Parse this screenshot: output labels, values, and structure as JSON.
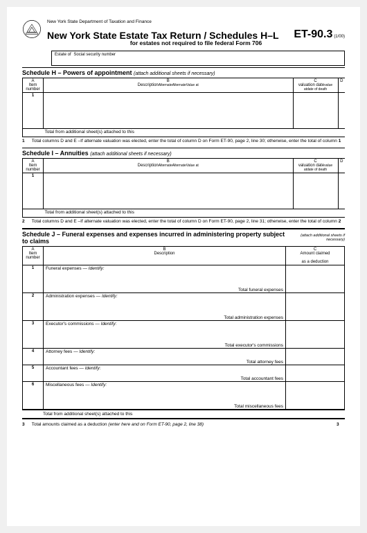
{
  "dept": "New York State Department of Taxation and Finance",
  "form_code": "ET-90.3",
  "date_code": "(1/00)",
  "title": "New York State Estate Tax Return / Schedules H–L",
  "subtitle": "for estates not required to file federal Form 706",
  "estate_label": "Estate of",
  "ssn_label": "Social security number",
  "sched_h": {
    "title": "Schedule H – Powers of appointment",
    "note": "(attach additional sheets if necessary)",
    "cols": {
      "a": "A\nItem\nnumber",
      "b": "B\nDescription",
      "balt1": "Alternate",
      "balt2": "Alternate",
      "bval": "Value at",
      "c": "C\nvaluation date",
      "cval": "value at",
      "cdate": "date of death",
      "d": "D"
    },
    "row1": "1",
    "total": "Total from additional sheet(s) attached to this",
    "instr_num": "1",
    "instr": "Total columns D and E –If alternate valuation was elected, enter the total of column D on\nForm ET-90, page 2, line 30; otherwise, enter the total of column",
    "instr_end": "1"
  },
  "sched_i": {
    "title": "Schedule I – Annuities",
    "note": "(attach additional sheets if necessary)",
    "row1": "1",
    "total": "Total from additional sheet(s) attached to this",
    "instr_num": "2",
    "instr": "Total columns D and E –If alternate valuation was elected, enter the total of column D on\nForm ET-90, page 2, line 31; otherwise, enter the total of column",
    "instr_end": "2"
  },
  "sched_j": {
    "title": "Schedule J – Funeral expenses and expenses incurred in administering property subject to claims",
    "note": "(attach additional sheets\nif necessary)",
    "cols": {
      "a": "A\nItem\nnumber",
      "b": "B\nDescription",
      "c": "C\nAmount claimed\nas a deduction"
    },
    "items": [
      {
        "n": "1",
        "label": "Funeral expenses —",
        "id": "Identify:",
        "sub": "Total funeral expenses",
        "h": "jrow"
      },
      {
        "n": "2",
        "label": "Administration expenses —",
        "id": "Identify:",
        "sub": "Total administration expenses",
        "h": "jrow"
      },
      {
        "n": "3",
        "label": "Executor's commissions —",
        "id": "Identify:",
        "sub": "Total executor's commissions",
        "h": "jrow"
      },
      {
        "n": "4",
        "label": "Attorney fees —",
        "id": "Identify:",
        "sub": "Total attorney fees",
        "h": "jrow-sm"
      },
      {
        "n": "5",
        "label": "Accountant fees —",
        "id": "Identify:",
        "sub": "Total accountant fees",
        "h": "jrow-sm"
      },
      {
        "n": "6",
        "label": "Miscellaneous fees —",
        "id": "Identify:",
        "sub": "Total miscellaneous fees",
        "h": "jrow"
      }
    ],
    "total": "Total from additional sheet(s) attached to this",
    "final_num": "3",
    "final": "Total amounts claimed as a deduction",
    "final_it": "(enter here and on Form ET-90, page 2, line 38)",
    "final_end": "3"
  }
}
